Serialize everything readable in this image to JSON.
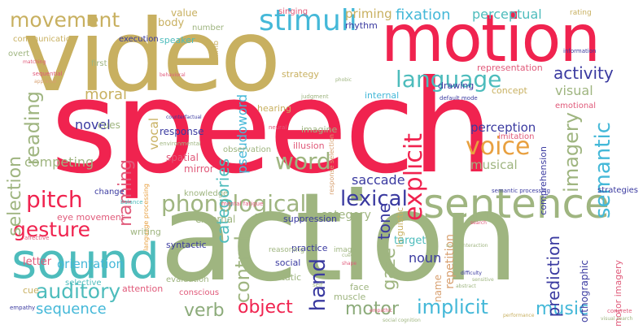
{
  "colors": {
    "red": "#f0234f",
    "olive": "#9fb580",
    "gold": "#c8b060",
    "teal": "#4dbcbc",
    "sky": "#44b8d8",
    "navy": "#3a3aa0",
    "orange": "#e8a040",
    "tan": "#d8a070",
    "pink": "#e05a7a",
    "green": "#8cab7a"
  },
  "words": {
    "speech": "speech",
    "action": "action",
    "video": "video",
    "motion": "motion",
    "sentence": "sentence",
    "sound": "sound",
    "stimuli": "stimuli",
    "phonological": "phonological",
    "language": "language",
    "movement": "movement",
    "gesture": "gesture",
    "pitch": "pitch",
    "word": "word",
    "voice": "voice",
    "lexical": "lexical",
    "auditory": "auditory",
    "music": "music",
    "implicit": "implicit",
    "motor": "motor",
    "object": "object",
    "verb": "verb",
    "sequence": "sequence",
    "explicit": "explicit",
    "semantic": "semantic",
    "imagery": "imagery",
    "activity": "activity",
    "reading": "reading",
    "naming": "naming",
    "selection": "selection",
    "control": "control",
    "hand": "hand",
    "gaze": "gaze",
    "tone": "tone",
    "prediction": "prediction",
    "categories": "categories",
    "fixation": "fixation",
    "perceptual": "perceptual",
    "priming": "priming",
    "moral": "moral",
    "novel": "novel",
    "competing": "competing",
    "perception": "perception",
    "musical": "musical",
    "saccade": "saccade",
    "visual": "visual",
    "category": "category",
    "noun": "noun",
    "target": "target",
    "orientation": "orientation",
    "body": "body",
    "value": "value",
    "rhythm": "rhythm",
    "pseudoword": "pseudoword",
    "vocal": "vocal",
    "representation": "representation",
    "strategy": "strategy",
    "cues": "cues",
    "response": "response",
    "spatial": "spatial",
    "mirror": "mirror",
    "imagine": "imagine",
    "illusion": "illusion",
    "observation": "observation",
    "comprehension": "comprehension",
    "imitation": "imitation",
    "emotional": "emotional",
    "internal": "internal",
    "concept": "concept",
    "hearing": "hearing",
    "drawing": "drawing",
    "knowledge": "knowledge",
    "change": "change",
    "eye_movement": "eye movement",
    "external": "external",
    "suppression": "suppression",
    "writing": "writing",
    "syntactic": "syntactic",
    "practice": "practice",
    "social": "social",
    "static": "static",
    "evaluation": "evaluation",
    "conscious": "conscious",
    "face": "face",
    "muscle": "muscle",
    "letter": "letter",
    "selective": "selective",
    "cue": "cue",
    "attention": "attention",
    "repetition": "repetition",
    "name": "name",
    "linguistic": "linguistic",
    "strategies": "strategies",
    "orthographic": "orthographic",
    "motor_imagery": "motor imagery",
    "communication": "communication",
    "execution": "execution",
    "speaker": "speaker",
    "number": "number",
    "singing": "singing",
    "rating": "rating",
    "overt": "overt",
    "first": "first",
    "limb": "limb",
    "image": "image",
    "reasoning": "reasoning",
    "judgment": "judgment",
    "language_processing": "language processing",
    "semantic_processing": "semantic processing",
    "information": "information",
    "default_mode": "default mode",
    "matching": "matching",
    "affective": "affective",
    "empathy": "empathy",
    "balance": "balance",
    "mental_fatigue": "mental fatigue",
    "sequential": "sequential",
    "neural": "neural",
    "environmental": "environmental",
    "phobic": "phobic",
    "behavioral": "behavioral",
    "self": "self",
    "empathic": "empathic",
    "shape": "shape",
    "cued": "cued",
    "social_interaction": "social interaction",
    "concrete": "concrete",
    "visual_search": "visual search",
    "performance": "performance",
    "search": "search",
    "social_cognition": "social cognition",
    "appraisal": "appraisal",
    "counterfactual": "counterfactual",
    "response_selection": "response selection",
    "difficulty": "difficulty",
    "sensitive": "sensitive",
    "abstract": "abstract"
  }
}
